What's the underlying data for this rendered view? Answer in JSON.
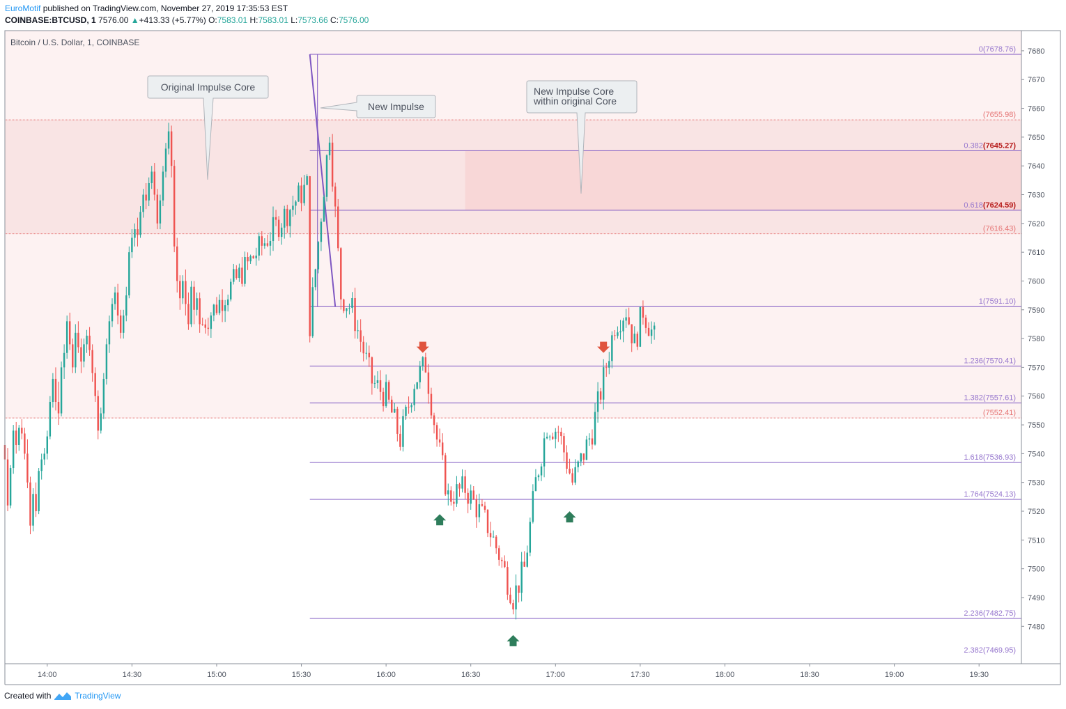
{
  "header": {
    "publisher": "EuroMotif",
    "published_text": "published on TradingView.com, November 27, 2019 17:35:53 EST",
    "symbol": "COINBASE:BTCUSD, 1",
    "last": "7576.00",
    "change_arrow": "▲",
    "change": "+413.33 (+5.77%)",
    "o_label": "O:",
    "o": "7583.01",
    "h_label": "H:",
    "h": "7583.01",
    "l_label": "L:",
    "l": "7573.66",
    "c_label": "C:",
    "c": "7576.00"
  },
  "footer": {
    "created_with": "Created with",
    "brand": "TradingView",
    "logo_icon": "tradingview-logo-icon"
  },
  "chart_data": {
    "type": "candlestick",
    "title": "Bitcoin / U.S. Dollar, 1, COINBASE",
    "ylim": [
      7467,
      7687
    ],
    "xlim": [
      "13:45",
      "19:45"
    ],
    "y_ticks": [
      7480,
      7490,
      7500,
      7510,
      7520,
      7530,
      7540,
      7550,
      7560,
      7570,
      7580,
      7590,
      7600,
      7610,
      7620,
      7630,
      7640,
      7650,
      7660,
      7670,
      7680
    ],
    "x_ticks": [
      "14:00",
      "14:30",
      "15:00",
      "15:30",
      "16:00",
      "16:30",
      "17:00",
      "17:30",
      "18:00",
      "18:30",
      "19:00",
      "19:30"
    ],
    "colors": {
      "up": "#26a69a",
      "down": "#ef5350",
      "fib": "#7e57c2",
      "zone": "#f8d7d7",
      "zone_light": "#fdf2f2",
      "zone_line": "#e57373"
    },
    "fib_levels": [
      {
        "ratio": "0",
        "price": 7678.76,
        "label": "0(7678.76)"
      },
      {
        "ratio": "0.382",
        "price": 7645.27,
        "label": "0.382",
        "value_label": "(7645.27)"
      },
      {
        "ratio": "0.618",
        "price": 7624.59,
        "label": "0.618",
        "value_label": "(7624.59)"
      },
      {
        "ratio": "1",
        "price": 7591.1,
        "label": "1(7591.10)"
      },
      {
        "ratio": "1.236",
        "price": 7570.41,
        "label": "1.236(7570.41)"
      },
      {
        "ratio": "1.382",
        "price": 7557.61,
        "label": "1.382(7557.61)"
      },
      {
        "ratio": "1.618",
        "price": 7536.93,
        "label": "1.618(7536.93)"
      },
      {
        "ratio": "1.764",
        "price": 7524.13,
        "label": "1.764(7524.13)"
      },
      {
        "ratio": "2.236",
        "price": 7482.75,
        "label": "2.236(7482.75)"
      },
      {
        "ratio": "2.382",
        "price": 7469.95,
        "label": "2.382(7469.95)"
      }
    ],
    "zones": [
      {
        "name": "original-range",
        "top": 7687,
        "bottom": 7552.41,
        "start": "13:45",
        "label": "(7552.41)"
      },
      {
        "name": "original-impulse-core",
        "top": 7655.98,
        "bottom": 7616.43,
        "start": "13:45",
        "top_label": "(7655.98)",
        "bottom_label": "(7616.43)"
      },
      {
        "name": "new-impulse-core",
        "top": 7645.27,
        "bottom": 7624.59,
        "start": "16:28"
      }
    ],
    "impulse_line": {
      "from": [
        "15:33",
        7678.76
      ],
      "to": [
        "15:42",
        7591.1
      ]
    },
    "annotations": [
      {
        "text": "Original Impulse Core",
        "at": [
          "14:55",
          7637
        ]
      },
      {
        "text": "New Impulse",
        "at": [
          "15:33",
          7656
        ]
      },
      {
        "text": "New Impulse Core\nwithin original Core",
        "at": [
          "17:09",
          7633
        ]
      }
    ],
    "arrows": [
      {
        "dir": "down",
        "time": "16:13",
        "price": 7576
      },
      {
        "dir": "up",
        "time": "16:19",
        "price": 7518
      },
      {
        "dir": "up",
        "time": "16:45",
        "price": 7476
      },
      {
        "dir": "up",
        "time": "17:05",
        "price": 7519
      },
      {
        "dir": "down",
        "time": "17:17",
        "price": 7576
      }
    ],
    "candles": [
      [
        "13:45",
        7543,
        7545,
        7535,
        7538
      ],
      [
        "13:46",
        7538,
        7542,
        7520,
        7522
      ],
      [
        "13:47",
        7522,
        7536,
        7521,
        7535
      ],
      [
        "13:48",
        7535,
        7550,
        7533,
        7548
      ],
      [
        "13:49",
        7548,
        7551,
        7540,
        7543
      ],
      [
        "13:50",
        7543,
        7550,
        7541,
        7549
      ],
      [
        "13:51",
        7549,
        7552,
        7545,
        7547
      ],
      [
        "13:52",
        7547,
        7549,
        7538,
        7540
      ],
      [
        "13:53",
        7540,
        7545,
        7528,
        7530
      ],
      [
        "13:54",
        7530,
        7532,
        7512,
        7515
      ],
      [
        "13:55",
        7515,
        7528,
        7513,
        7526
      ],
      [
        "13:56",
        7526,
        7530,
        7518,
        7520
      ],
      [
        "13:57",
        7520,
        7535,
        7519,
        7534
      ],
      [
        "13:58",
        7534,
        7540,
        7531,
        7538
      ],
      [
        "13:59",
        7538,
        7542,
        7536,
        7540
      ],
      [
        "14:00",
        7540,
        7548,
        7538,
        7546
      ],
      [
        "14:01",
        7546,
        7560,
        7545,
        7558
      ],
      [
        "14:02",
        7558,
        7568,
        7556,
        7566
      ],
      [
        "14:03",
        7566,
        7570,
        7555,
        7558
      ],
      [
        "14:04",
        7558,
        7565,
        7550,
        7554
      ],
      [
        "14:05",
        7554,
        7572,
        7553,
        7570
      ],
      [
        "14:06",
        7570,
        7578,
        7566,
        7575
      ],
      [
        "14:07",
        7575,
        7588,
        7573,
        7586
      ],
      [
        "14:08",
        7586,
        7589,
        7576,
        7578
      ],
      [
        "14:09",
        7578,
        7580,
        7568,
        7570
      ],
      [
        "14:10",
        7570,
        7585,
        7568,
        7582
      ],
      [
        "14:11",
        7582,
        7586,
        7575,
        7577
      ],
      [
        "14:12",
        7577,
        7580,
        7568,
        7572
      ],
      [
        "14:13",
        7572,
        7580,
        7570,
        7578
      ],
      [
        "14:14",
        7578,
        7583,
        7575,
        7581
      ],
      [
        "14:15",
        7581,
        7584,
        7574,
        7576
      ],
      [
        "14:16",
        7576,
        7578,
        7565,
        7568
      ],
      [
        "14:17",
        7568,
        7570,
        7558,
        7560
      ],
      [
        "14:18",
        7560,
        7562,
        7545,
        7548
      ],
      [
        "14:19",
        7548,
        7556,
        7547,
        7554
      ],
      [
        "14:20",
        7554,
        7568,
        7552,
        7566
      ],
      [
        "14:21",
        7566,
        7580,
        7564,
        7578
      ],
      [
        "14:22",
        7578,
        7588,
        7575,
        7586
      ],
      [
        "14:23",
        7586,
        7594,
        7584,
        7592
      ],
      [
        "14:24",
        7592,
        7598,
        7590,
        7596
      ],
      [
        "14:25",
        7596,
        7599,
        7585,
        7588
      ],
      [
        "14:26",
        7588,
        7590,
        7580,
        7582
      ],
      [
        "14:27",
        7582,
        7590,
        7580,
        7588
      ],
      [
        "14:28",
        7588,
        7598,
        7586,
        7595
      ],
      [
        "14:29",
        7595,
        7612,
        7594,
        7610
      ],
      [
        "14:30",
        7610,
        7618,
        7608,
        7615
      ],
      [
        "14:31",
        7615,
        7620,
        7612,
        7618
      ],
      [
        "14:32",
        7618,
        7622,
        7612,
        7616
      ],
      [
        "14:33",
        7616,
        7626,
        7615,
        7624
      ],
      [
        "14:34",
        7624,
        7632,
        7622,
        7630
      ],
      [
        "14:35",
        7630,
        7634,
        7625,
        7628
      ],
      [
        "14:36",
        7628,
        7636,
        7626,
        7634
      ],
      [
        "14:37",
        7634,
        7640,
        7632,
        7638
      ],
      [
        "14:38",
        7638,
        7641,
        7628,
        7630
      ],
      [
        "14:39",
        7630,
        7632,
        7618,
        7620
      ],
      [
        "14:40",
        7620,
        7630,
        7618,
        7628
      ],
      [
        "14:41",
        7628,
        7640,
        7626,
        7638
      ],
      [
        "14:42",
        7638,
        7648,
        7636,
        7646
      ],
      [
        "14:43",
        7646,
        7655,
        7644,
        7652
      ],
      [
        "14:44",
        7652,
        7654,
        7636,
        7640
      ],
      [
        "14:45",
        7640,
        7642,
        7610,
        7612
      ],
      [
        "14:46",
        7612,
        7615,
        7596,
        7600
      ],
      [
        "14:47",
        7600,
        7602,
        7590,
        7594
      ],
      [
        "14:48",
        7594,
        7602,
        7592,
        7600
      ],
      [
        "14:49",
        7600,
        7604,
        7588,
        7592
      ],
      [
        "14:50",
        7592,
        7596,
        7583,
        7585
      ],
      [
        "14:51",
        7585,
        7600,
        7584,
        7598
      ],
      [
        "14:52",
        7598,
        7600,
        7585,
        7590
      ],
      [
        "14:53",
        7590,
        7596,
        7588,
        7594
      ],
      [
        "14:54",
        7594,
        7596,
        7582,
        7585
      ]
    ]
  }
}
